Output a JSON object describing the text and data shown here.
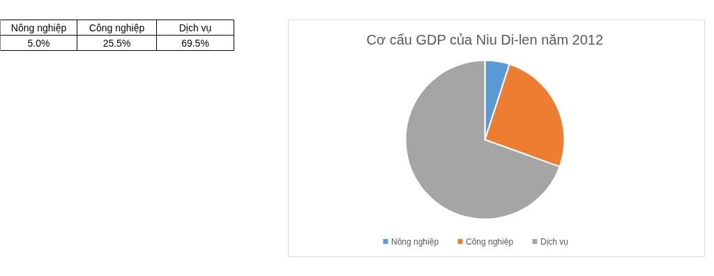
{
  "chart_data": [
    {
      "type": "other",
      "categories": [
        "Nông nghiệp",
        "Công nghiệp",
        "Dịch vụ"
      ],
      "annotations": [
        "5.0%",
        "25.5%",
        "69.5%"
      ]
    },
    {
      "type": "pie",
      "title": "Cơ cấu GDP của Niu Di-len năm 2012",
      "categories": [
        "Nông nghiệp",
        "Công nghiệp",
        "Dịch vụ"
      ],
      "values": [
        5.0,
        25.5,
        69.5
      ],
      "colors": [
        "#5b9bd5",
        "#ed7d31",
        "#a5a5a5"
      ],
      "legend": "bottom"
    }
  ]
}
